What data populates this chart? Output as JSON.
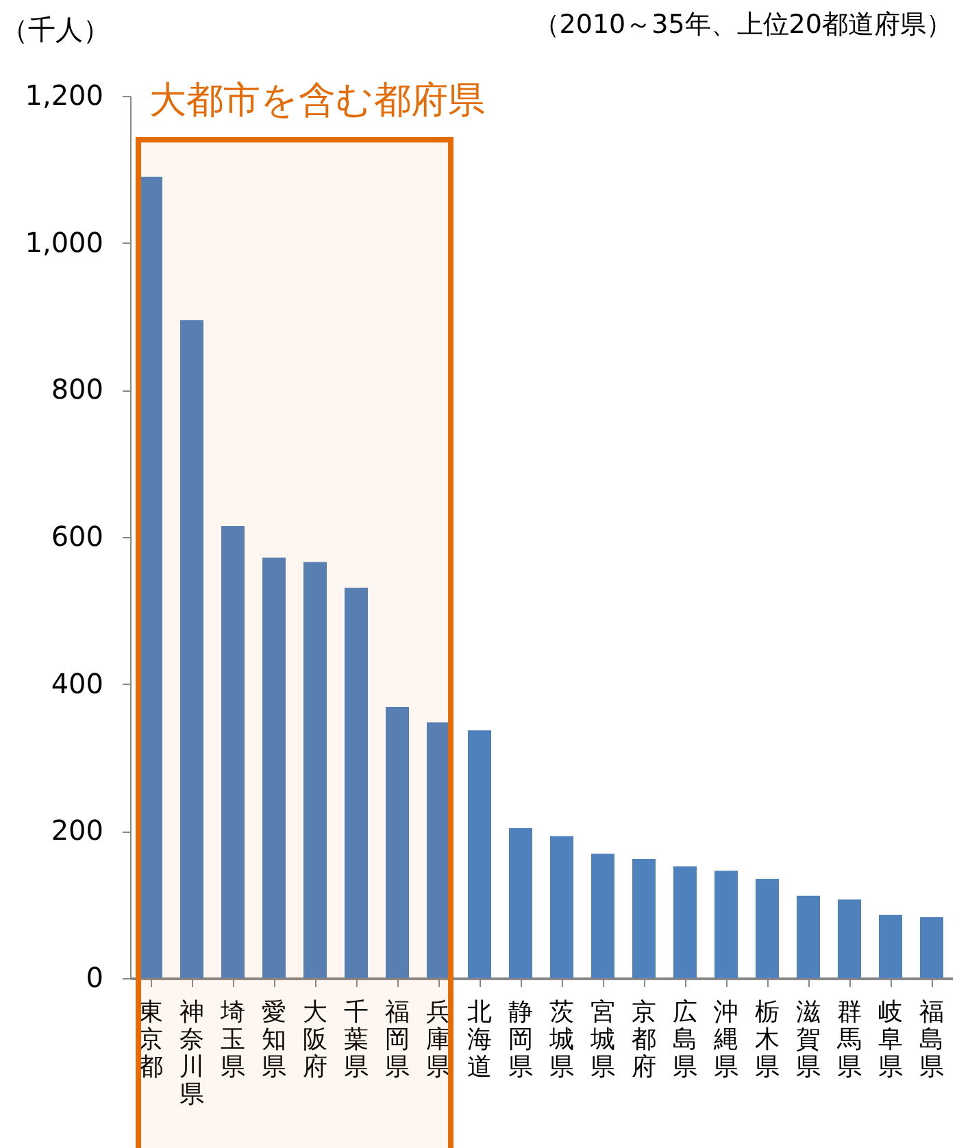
{
  "chart_data": {
    "type": "bar",
    "subtitle": "（2010～35年、上位20都道府県）",
    "ylabel": "（千人）",
    "categories": [
      "東京都",
      "神奈川県",
      "埼玉県",
      "愛知県",
      "大阪府",
      "千葉県",
      "福岡県",
      "兵庫県",
      "北海道",
      "静岡県",
      "茨城県",
      "宮城県",
      "京都府",
      "広島県",
      "沖縄県",
      "栃木県",
      "滋賀県",
      "群馬県",
      "岐阜県",
      "福島県"
    ],
    "values": [
      1090,
      895,
      615,
      572,
      566,
      531,
      369,
      348,
      337,
      204,
      193,
      169,
      162,
      152,
      146,
      135,
      112,
      107,
      86,
      83
    ],
    "color": "#4f81bd",
    "ylim": [
      0,
      1200
    ],
    "yticks": [
      0,
      200,
      400,
      600,
      800,
      {
        "value": 1000,
        "label": "1,000"
      },
      {
        "value": 1200,
        "label": "1,200"
      }
    ],
    "grid": false,
    "bands": [
      {
        "axis": "x",
        "from": "東京都",
        "to": "兵庫県",
        "label": "大都市を含む都府県",
        "color": "#e36c09"
      }
    ]
  }
}
